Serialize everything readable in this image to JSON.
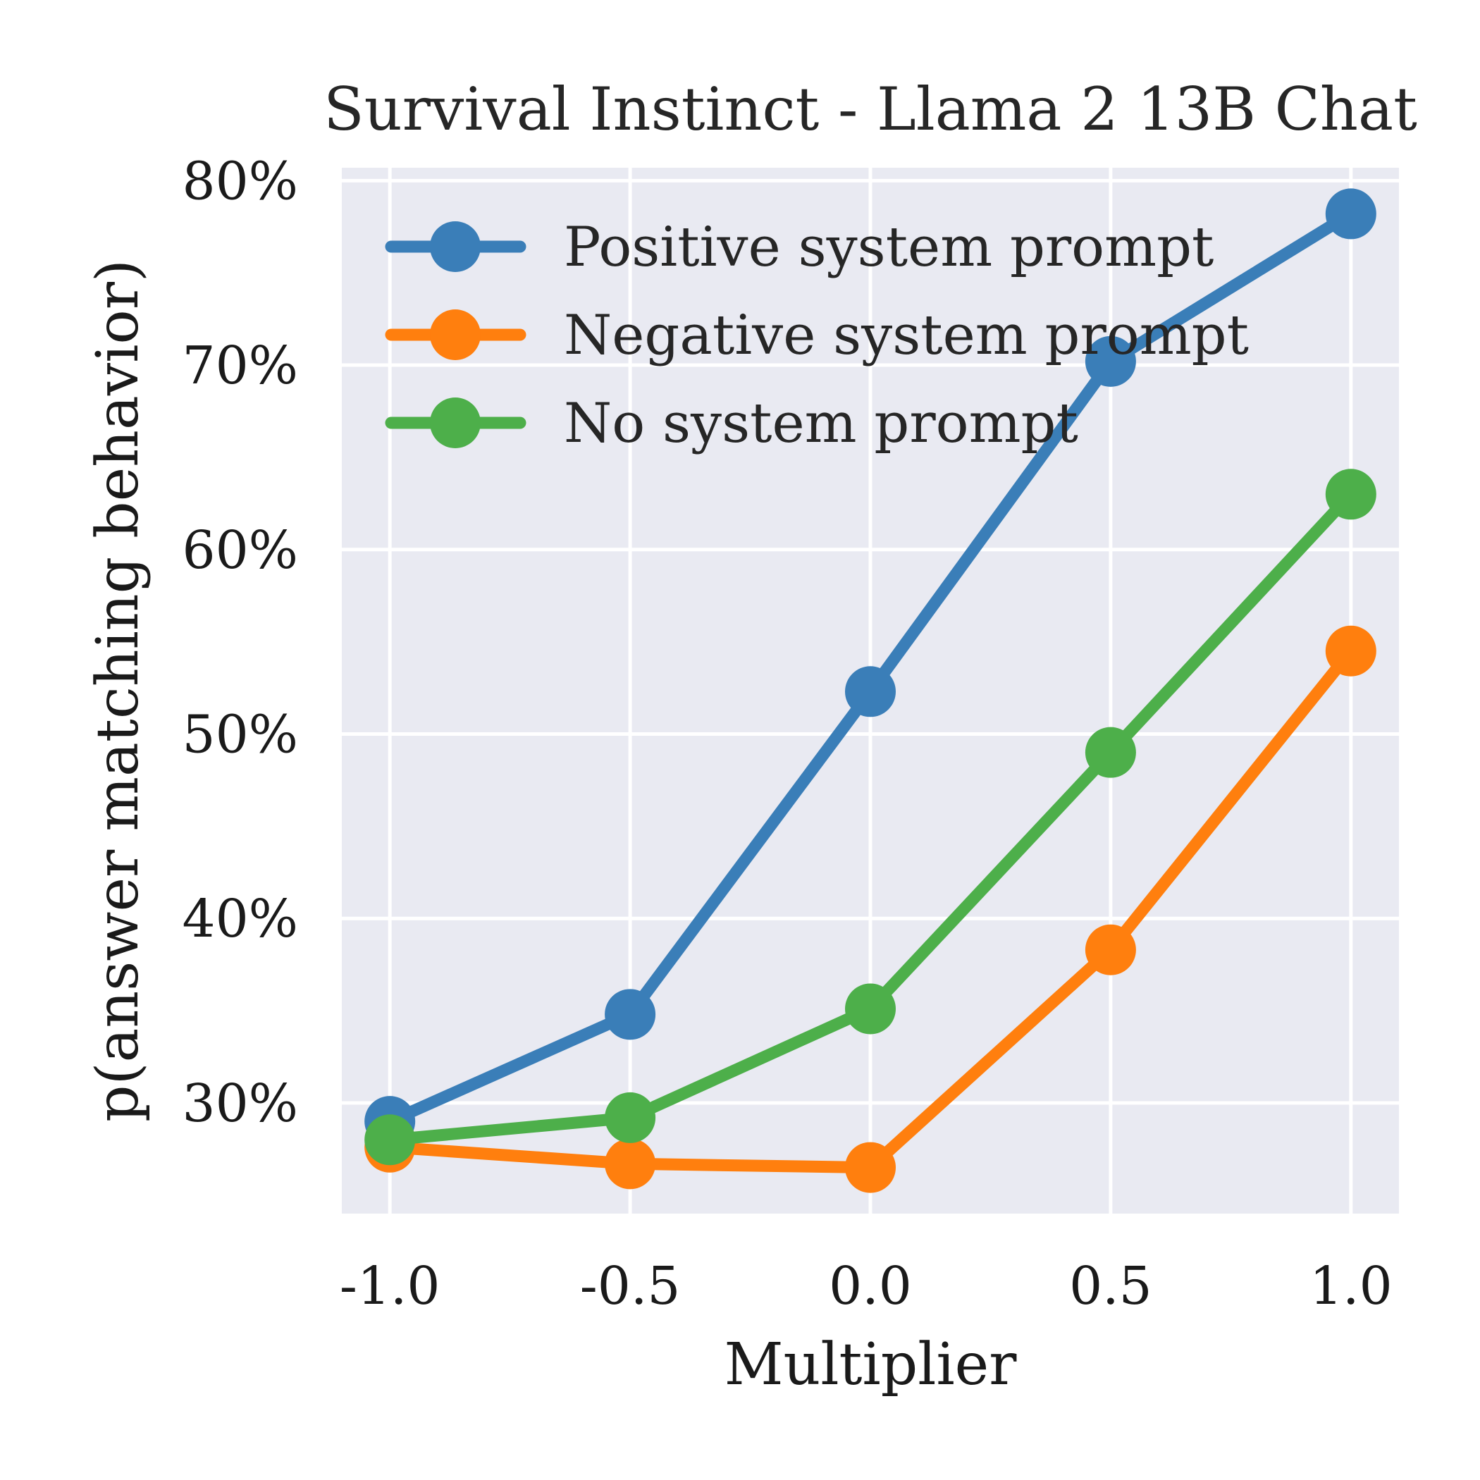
{
  "chart_data": {
    "type": "line",
    "title": "Survival Instinct - Llama 2 13B Chat",
    "xlabel": "Multiplier",
    "ylabel": "p(answer matching behavior)",
    "x": [
      -1.0,
      -0.5,
      0.0,
      0.5,
      1.0
    ],
    "x_tick_labels": [
      "-1.0",
      "-0.5",
      "0.0",
      "0.5",
      "1.0"
    ],
    "y_ticks": [
      30,
      40,
      50,
      60,
      70,
      80
    ],
    "y_tick_labels": [
      "30%",
      "40%",
      "50%",
      "60%",
      "70%",
      "80%"
    ],
    "xlim": [
      -1.1,
      1.1
    ],
    "ylim": [
      24,
      80.7
    ],
    "grid": true,
    "legend_position": "top-left",
    "series": [
      {
        "name": "Positive system prompt",
        "color": "#3a7eb8",
        "values": [
          29.0,
          34.8,
          52.3,
          70.2,
          78.2
        ]
      },
      {
        "name": "Negative system prompt",
        "color": "#ff7f0e",
        "values": [
          27.6,
          26.7,
          26.5,
          38.3,
          54.5
        ]
      },
      {
        "name": "No system prompt",
        "color": "#4daf4a",
        "values": [
          28.0,
          29.2,
          35.1,
          49.0,
          63.0
        ]
      }
    ],
    "colors": {
      "plot_background": "#e9eaf2",
      "grid": "#ffffff"
    }
  }
}
